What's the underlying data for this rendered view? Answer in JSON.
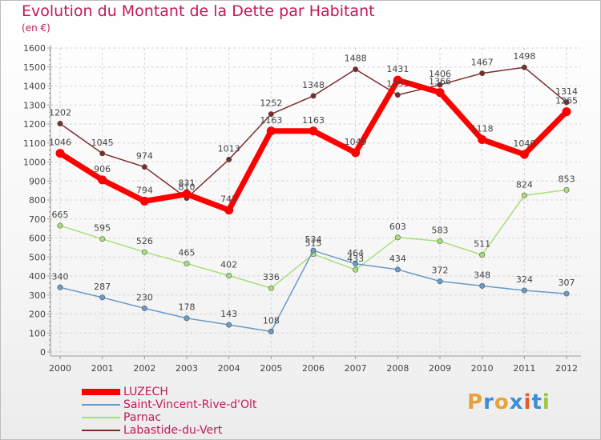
{
  "header": {
    "title": "Evolution du Montant de la Dette par Habitant",
    "subtitle": "(en €)"
  },
  "logo": {
    "letters": [
      "P",
      "r",
      "o",
      "x",
      "i",
      "t",
      "i"
    ],
    "colors": [
      "#e8a23a",
      "#3a8fd6",
      "#e8a23a",
      "#3a8fd6",
      "#e85a2a",
      "#3a8fd6",
      "#9ac840"
    ]
  },
  "chart_data": {
    "type": "line",
    "title": "Evolution du Montant de la Dette par Habitant",
    "subtitle": "(en €)",
    "xlabel": "",
    "ylabel": "",
    "ylim": [
      0,
      1600
    ],
    "y_ticks": [
      0,
      100,
      200,
      300,
      400,
      500,
      600,
      700,
      800,
      900,
      1000,
      1100,
      1200,
      1300,
      1400,
      1500,
      1600
    ],
    "grid": true,
    "legend_position": "bottom-left",
    "categories": [
      "2000",
      "2001",
      "2002",
      "2003",
      "2004",
      "2005",
      "2006",
      "2007",
      "2008",
      "2009",
      "2010",
      "2011",
      "2012"
    ],
    "series": [
      {
        "name": "LUZECH",
        "color": "#ff0000",
        "values": [
          1046,
          906,
          794,
          831,
          747,
          1163,
          1163,
          1049,
          1431,
          1366,
          1118,
          1040,
          1265
        ],
        "labels": [
          "1046",
          "906",
          "794",
          "831",
          "747",
          "1163",
          "1163",
          "1049",
          "1431",
          "1366",
          "1118",
          "1040",
          "1265"
        ]
      },
      {
        "name": "Saint-Vincent-Rive-d'Olt",
        "color": "#6a9bc8",
        "values": [
          340,
          287,
          230,
          178,
          143,
          108,
          534,
          464,
          434,
          372,
          348,
          324,
          307
        ],
        "labels": [
          "340",
          "287",
          "230",
          "178",
          "143",
          "108",
          "534",
          "464",
          "434",
          "372",
          "348",
          "324",
          "307"
        ]
      },
      {
        "name": "Parnac",
        "color": "#a8de76",
        "values": [
          665,
          595,
          526,
          465,
          402,
          336,
          515,
          433,
          603,
          583,
          511,
          824,
          853
        ],
        "labels": [
          "665",
          "595",
          "526",
          "465",
          "402",
          "336",
          "515",
          "433",
          "603",
          "583",
          "511",
          "824",
          "853"
        ]
      },
      {
        "name": "Labastide-du-Vert",
        "color": "#7b2b2b",
        "values": [
          1202,
          1045,
          974,
          810,
          1013,
          1252,
          1348,
          1488,
          1353,
          1406,
          1467,
          1498,
          1314
        ],
        "labels": [
          "1202",
          "1045",
          "974",
          "810",
          "1013",
          "1252",
          "1348",
          "1488",
          "1353",
          "1406",
          "1467",
          "1498",
          "1314"
        ]
      }
    ]
  }
}
